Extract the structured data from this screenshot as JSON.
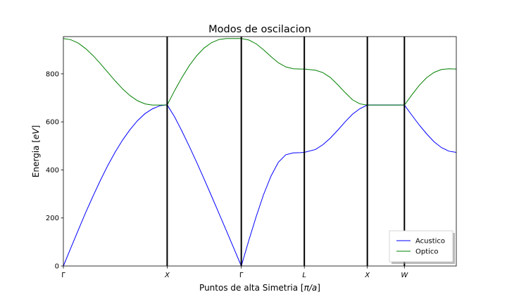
{
  "chart_data": {
    "type": "line",
    "title": "Modos de oscilacion",
    "xlabel_pre": "Puntos de alta Simetria [",
    "xlabel_italic": "π/a",
    "xlabel_post": "]",
    "ylabel_pre": "Energia [",
    "ylabel_italic": "eV",
    "ylabel_post": "]",
    "ylim": [
      0,
      955
    ],
    "yticks": [
      0,
      200,
      400,
      600,
      800
    ],
    "xlim": [
      0,
      5.3
    ],
    "xticks": [
      {
        "pos": 0,
        "label": "Γ",
        "italic": false
      },
      {
        "pos": 1.4,
        "label": "X",
        "italic": true
      },
      {
        "pos": 2.4,
        "label": "Γ",
        "italic": false
      },
      {
        "pos": 3.25,
        "label": "L",
        "italic": true
      },
      {
        "pos": 4.1,
        "label": "X",
        "italic": true
      },
      {
        "pos": 4.6,
        "label": "W",
        "italic": true
      }
    ],
    "vlines": [
      1.4,
      2.4,
      3.25,
      4.1,
      4.6
    ],
    "grid": false,
    "legend_position": "lower-right",
    "series": [
      {
        "name": "Acustico",
        "color": "#0000ff",
        "x": [
          0,
          0.1,
          0.2,
          0.3,
          0.4,
          0.5,
          0.6,
          0.7,
          0.8,
          0.9,
          1.0,
          1.1,
          1.2,
          1.3,
          1.4,
          1.5,
          1.6,
          1.7,
          1.8,
          1.9,
          2.0,
          2.1,
          2.2,
          2.3,
          2.4,
          2.5,
          2.6,
          2.7,
          2.8,
          2.9,
          3.0,
          3.1,
          3.2,
          3.25,
          3.4,
          3.5,
          3.6,
          3.7,
          3.8,
          3.9,
          4.0,
          4.1,
          4.6,
          4.7,
          4.8,
          4.9,
          5.0,
          5.1,
          5.2,
          5.3
        ],
        "y": [
          0,
          75,
          149,
          222,
          291,
          357,
          419,
          475,
          525,
          568,
          605,
          634,
          654,
          667,
          671,
          621,
          561,
          497,
          430,
          361,
          290,
          218,
          146,
          73,
          0,
          105,
          205,
          297,
          374,
          432,
          463,
          471,
          472,
          473,
          485,
          505,
          532,
          565,
          600,
          632,
          655,
          670,
          670,
          628,
          587,
          550,
          517,
          493,
          478,
          473
        ]
      },
      {
        "name": "Optico",
        "color": "#008000",
        "x": [
          0,
          0.1,
          0.2,
          0.3,
          0.4,
          0.5,
          0.6,
          0.7,
          0.8,
          0.9,
          1.0,
          1.1,
          1.2,
          1.3,
          1.4,
          1.5,
          1.6,
          1.7,
          1.8,
          1.9,
          2.0,
          2.1,
          2.2,
          2.3,
          2.4,
          2.5,
          2.6,
          2.7,
          2.8,
          2.9,
          3.0,
          3.1,
          3.2,
          3.25,
          3.4,
          3.5,
          3.6,
          3.7,
          3.8,
          3.9,
          4.0,
          4.1,
          4.6,
          4.7,
          4.8,
          4.9,
          5.0,
          5.1,
          5.2,
          5.3
        ],
        "y": [
          947,
          942,
          928,
          905,
          876,
          842,
          806,
          770,
          737,
          709,
          688,
          675,
          670,
          670,
          670,
          730,
          785,
          835,
          876,
          908,
          930,
          943,
          947,
          947,
          947,
          941,
          925,
          900,
          872,
          846,
          829,
          821,
          820,
          820,
          815,
          805,
          785,
          755,
          722,
          692,
          675,
          670,
          670,
          712,
          752,
          784,
          806,
          818,
          821,
          820
        ]
      }
    ]
  }
}
